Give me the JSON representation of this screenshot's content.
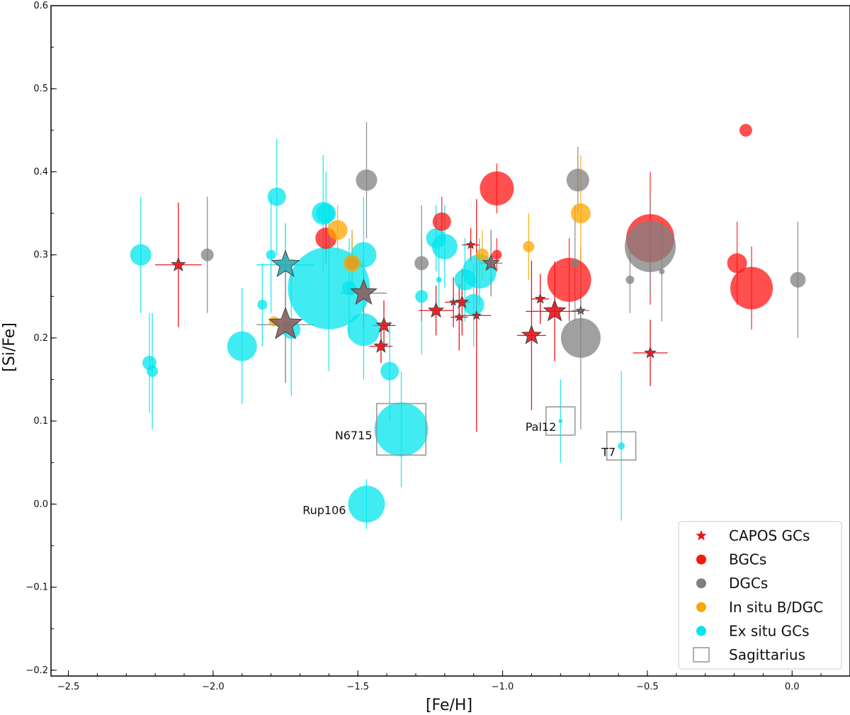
{
  "chart_data": {
    "type": "scatter",
    "title": "",
    "xlabel": "[Fe/H]",
    "ylabel": "[Si/Fe]",
    "xlim": [
      -2.56,
      0.2
    ],
    "ylim": [
      -0.207,
      0.6
    ],
    "xticks": [
      -2.5,
      -2.0,
      -1.5,
      -1.0,
      -0.5,
      0.0
    ],
    "xtick_labels": [
      "−2.5",
      "−2.0",
      "−1.5",
      "−1.0",
      "−0.5",
      "0.0"
    ],
    "yticks": [
      -0.2,
      -0.1,
      0.0,
      0.1,
      0.2,
      0.3,
      0.4,
      0.5,
      0.6
    ],
    "ytick_labels": [
      "−0.2",
      "−0.1",
      "0.0",
      "0.1",
      "0.2",
      "0.3",
      "0.4",
      "0.5",
      "0.6"
    ],
    "colors": {
      "capos": "#e8141a",
      "bgc": "#ff1414",
      "dgc": "#808080",
      "insitu": "#ffa500",
      "exsitu": "#00e5ee",
      "capos_dgc": "#8c5f5f",
      "capos_exsitu": "#2aa9b2"
    },
    "series": [
      {
        "name": "Ex situ GCs",
        "color_key": "exsitu",
        "points": [
          {
            "x": -2.25,
            "y": 0.3,
            "yerr": 0.07,
            "size": 15
          },
          {
            "x": -2.22,
            "y": 0.17,
            "yerr": 0.06,
            "size": 10
          },
          {
            "x": -2.21,
            "y": 0.16,
            "yerr": 0.07,
            "size": 8
          },
          {
            "x": -1.9,
            "y": 0.19,
            "yerr": 0.07,
            "size": 21
          },
          {
            "x": -1.83,
            "y": 0.24,
            "yerr": 0.05,
            "size": 7
          },
          {
            "x": -1.8,
            "y": 0.3,
            "yerr": 0.07,
            "size": 7
          },
          {
            "x": -1.78,
            "y": 0.37,
            "yerr": 0.07,
            "size": 13
          },
          {
            "x": -1.73,
            "y": 0.21,
            "yerr": 0.08,
            "size": 13
          },
          {
            "x": -1.6,
            "y": 0.26,
            "yerr": 0.1,
            "size": 58
          },
          {
            "x": -1.62,
            "y": 0.35,
            "yerr": 0.07,
            "size": 16
          },
          {
            "x": -1.61,
            "y": 0.35,
            "yerr": 0.05,
            "size": 14
          },
          {
            "x": -1.53,
            "y": 0.26,
            "yerr": 0.06,
            "size": 10
          },
          {
            "x": -1.48,
            "y": 0.3,
            "yerr": 0.07,
            "size": 18
          },
          {
            "x": -1.48,
            "y": 0.21,
            "yerr": 0.06,
            "size": 23
          },
          {
            "x": -1.39,
            "y": 0.16,
            "yerr": 0.06,
            "size": 13
          },
          {
            "x": -1.35,
            "y": 0.09,
            "yerr": 0.07,
            "size": 38,
            "label": "N6715"
          },
          {
            "x": -1.47,
            "y": 0.0,
            "yerr": 0.03,
            "size": 26,
            "label": "Rup106"
          },
          {
            "x": -1.28,
            "y": 0.25,
            "yerr": 0.07,
            "size": 9
          },
          {
            "x": -1.23,
            "y": 0.32,
            "yerr": 0.04,
            "size": 14
          },
          {
            "x": -1.22,
            "y": 0.27,
            "yerr": 0.04,
            "size": 4
          },
          {
            "x": -1.2,
            "y": 0.31,
            "yerr": 0.05,
            "size": 18
          },
          {
            "x": -1.13,
            "y": 0.27,
            "yerr": 0.05,
            "size": 15
          },
          {
            "x": -1.1,
            "y": 0.24,
            "yerr": 0.05,
            "size": 15
          },
          {
            "x": -1.08,
            "y": 0.28,
            "yerr": 0.04,
            "size": 24
          },
          {
            "x": -0.8,
            "y": 0.1,
            "yerr": 0.05,
            "size": 3,
            "label": "Pal12"
          },
          {
            "x": -0.59,
            "y": 0.07,
            "yerr": 0.09,
            "size": 5,
            "label": "T7"
          }
        ]
      },
      {
        "name": "BGCs",
        "color_key": "bgc",
        "points": [
          {
            "x": -1.61,
            "y": 0.32,
            "yerr": 0.03,
            "size": 15
          },
          {
            "x": -1.21,
            "y": 0.34,
            "yerr": 0.03,
            "size": 13
          },
          {
            "x": -1.02,
            "y": 0.38,
            "yerr": 0.03,
            "size": 24
          },
          {
            "x": -1.02,
            "y": 0.3,
            "yerr": 0.02,
            "size": 7
          },
          {
            "x": -0.77,
            "y": 0.27,
            "yerr": 0.05,
            "size": 31
          },
          {
            "x": -0.49,
            "y": 0.32,
            "yerr": 0.08,
            "size": 34
          },
          {
            "x": -0.19,
            "y": 0.29,
            "yerr": 0.05,
            "size": 14
          },
          {
            "x": -0.14,
            "y": 0.26,
            "yerr": 0.05,
            "size": 30
          },
          {
            "x": -0.16,
            "y": 0.45,
            "yerr": 0.0,
            "size": 9
          }
        ]
      },
      {
        "name": "DGCs",
        "color_key": "dgc",
        "points": [
          {
            "x": -2.02,
            "y": 0.3,
            "yerr": 0.07,
            "size": 9
          },
          {
            "x": -1.47,
            "y": 0.39,
            "yerr": 0.07,
            "size": 15
          },
          {
            "x": -1.52,
            "y": 0.29,
            "yerr": 0.04,
            "size": 9
          },
          {
            "x": -1.28,
            "y": 0.29,
            "yerr": 0.07,
            "size": 10
          },
          {
            "x": -0.74,
            "y": 0.39,
            "yerr": 0.04,
            "size": 16
          },
          {
            "x": -0.75,
            "y": 0.29,
            "yerr": 0.07,
            "size": 6
          },
          {
            "x": -0.73,
            "y": 0.2,
            "yerr": 0.11,
            "size": 28
          },
          {
            "x": -0.56,
            "y": 0.27,
            "yerr": 0.04,
            "size": 6
          },
          {
            "x": -0.49,
            "y": 0.31,
            "yerr": 0.06,
            "size": 36
          },
          {
            "x": -0.45,
            "y": 0.28,
            "yerr": 0.06,
            "size": 4
          },
          {
            "x": 0.02,
            "y": 0.27,
            "yerr": 0.07,
            "size": 11
          }
        ]
      },
      {
        "name": "In situ B/DGC",
        "color_key": "insitu",
        "points": [
          {
            "x": -1.79,
            "y": 0.22,
            "yerr": 0.0,
            "size": 7
          },
          {
            "x": -1.57,
            "y": 0.33,
            "yerr": 0.03,
            "size": 14
          },
          {
            "x": -1.52,
            "y": 0.29,
            "yerr": 0.04,
            "size": 12
          },
          {
            "x": -1.07,
            "y": 0.3,
            "yerr": 0.03,
            "size": 9
          },
          {
            "x": -0.91,
            "y": 0.31,
            "yerr": 0.04,
            "size": 8
          },
          {
            "x": -0.73,
            "y": 0.35,
            "yerr": 0.07,
            "size": 14
          }
        ]
      }
    ],
    "capos": {
      "name": "CAPOS GCs",
      "color_key": "capos",
      "points": [
        {
          "x": -2.12,
          "y": 0.288,
          "xerr": 0.08,
          "yerr": 0.075,
          "size": 10,
          "fill_key": "capos"
        },
        {
          "x": -1.75,
          "y": 0.288,
          "xerr": 0.1,
          "yerr": 0.05,
          "size": 20,
          "fill_key": "capos_exsitu"
        },
        {
          "x": -1.75,
          "y": 0.216,
          "xerr": 0.1,
          "yerr": 0.07,
          "size": 24,
          "fill_key": "capos_dgc"
        },
        {
          "x": -1.48,
          "y": 0.254,
          "xerr": 0.08,
          "yerr": 0.04,
          "size": 19,
          "fill_key": "capos_dgc"
        },
        {
          "x": -1.41,
          "y": 0.215,
          "xerr": 0.04,
          "yerr": 0.03,
          "size": 11,
          "fill_key": "capos"
        },
        {
          "x": -1.42,
          "y": 0.19,
          "xerr": 0.04,
          "yerr": 0.02,
          "size": 10,
          "fill_key": "capos"
        },
        {
          "x": -1.23,
          "y": 0.233,
          "xerr": 0.06,
          "yerr": 0.03,
          "size": 11,
          "fill_key": "capos"
        },
        {
          "x": -1.17,
          "y": 0.243,
          "xerr": 0.03,
          "yerr": 0.03,
          "size": 5,
          "fill_key": "capos"
        },
        {
          "x": -1.15,
          "y": 0.225,
          "xerr": 0.03,
          "yerr": 0.04,
          "size": 6,
          "fill_key": "capos"
        },
        {
          "x": -1.14,
          "y": 0.243,
          "xerr": 0.03,
          "yerr": 0.04,
          "size": 9,
          "fill_key": "capos"
        },
        {
          "x": -1.11,
          "y": 0.312,
          "xerr": 0.03,
          "yerr": 0.02,
          "size": 6,
          "fill_key": "capos"
        },
        {
          "x": -1.09,
          "y": 0.227,
          "xerr": 0.05,
          "yerr": 0.14,
          "size": 6,
          "fill_key": "capos"
        },
        {
          "x": -1.04,
          "y": 0.29,
          "xerr": 0.04,
          "yerr": 0.04,
          "size": 12,
          "fill_key": "capos_dgc"
        },
        {
          "x": -0.9,
          "y": 0.203,
          "xerr": 0.05,
          "yerr": 0.09,
          "size": 14,
          "fill_key": "capos"
        },
        {
          "x": -0.87,
          "y": 0.247,
          "xerr": 0.03,
          "yerr": 0.03,
          "size": 7,
          "fill_key": "capos"
        },
        {
          "x": -0.82,
          "y": 0.232,
          "xerr": 0.1,
          "yerr": 0.06,
          "size": 16,
          "fill_key": "capos"
        },
        {
          "x": -0.73,
          "y": 0.233,
          "xerr": 0.03,
          "yerr": 0.02,
          "size": 6,
          "fill_key": "capos_dgc"
        },
        {
          "x": -0.49,
          "y": 0.182,
          "xerr": 0.06,
          "yerr": 0.04,
          "size": 8,
          "fill_key": "capos"
        }
      ]
    },
    "sagittarius_boxes": [
      {
        "x": -1.35,
        "y": 0.09,
        "half_x": 0.085,
        "half_y": 0.031
      },
      {
        "x": -0.8,
        "y": 0.1,
        "half_x": 0.05,
        "half_y": 0.017
      },
      {
        "x": -0.59,
        "y": 0.07,
        "half_x": 0.05,
        "half_y": 0.017
      }
    ],
    "legend": {
      "placement": "lower-right",
      "entries": [
        {
          "label": "CAPOS GCs",
          "marker": "star",
          "color_key": "capos"
        },
        {
          "label": "BGCs",
          "marker": "circle",
          "color_key": "bgc"
        },
        {
          "label": "DGCs",
          "marker": "circle",
          "color_key": "dgc"
        },
        {
          "label": "In situ B/DGC",
          "marker": "circle",
          "color_key": "insitu"
        },
        {
          "label": "Ex situ GCs",
          "marker": "circle",
          "color_key": "exsitu"
        },
        {
          "label": "Sagittarius",
          "marker": "square",
          "color_key": "dgc"
        }
      ]
    }
  }
}
